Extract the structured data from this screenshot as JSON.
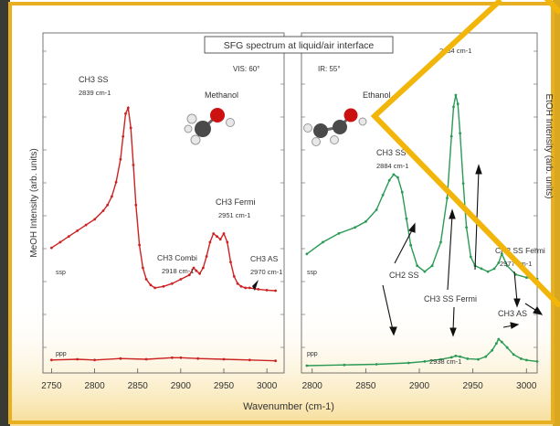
{
  "chart_data": [
    {
      "type": "line",
      "title": "SFG spectrum at liquid/air interface",
      "subtitle_vis": "VIS: 60°",
      "subtitle_ir": "IR: 55°",
      "panel_label": "Methanol",
      "panel_color": "#cc2222",
      "ylabel": "MeOH Intensity (arb. units)",
      "xlabel": "Wavenumber (cm-1)",
      "xlim": [
        2740,
        3020
      ],
      "xticks": [
        "2750",
        "2800",
        "2850",
        "2900",
        "2950",
        "3000"
      ],
      "series": [
        {
          "name": "ssp",
          "x": [
            2750,
            2760,
            2770,
            2780,
            2790,
            2800,
            2810,
            2815,
            2820,
            2825,
            2830,
            2833,
            2836,
            2839,
            2842,
            2845,
            2848,
            2852,
            2856,
            2860,
            2865,
            2870,
            2880,
            2890,
            2900,
            2910,
            2915,
            2918,
            2922,
            2926,
            2930,
            2934,
            2938,
            2942,
            2946,
            2950,
            2954,
            2958,
            2962,
            2966,
            2970,
            2975,
            2980,
            2990,
            3000,
            3010
          ],
          "y": [
            0.51,
            0.53,
            0.55,
            0.57,
            0.59,
            0.61,
            0.64,
            0.66,
            0.69,
            0.74,
            0.82,
            0.9,
            0.98,
            1.0,
            0.93,
            0.8,
            0.66,
            0.52,
            0.44,
            0.4,
            0.38,
            0.37,
            0.375,
            0.385,
            0.4,
            0.415,
            0.44,
            0.43,
            0.42,
            0.44,
            0.48,
            0.53,
            0.56,
            0.55,
            0.54,
            0.56,
            0.53,
            0.46,
            0.41,
            0.385,
            0.375,
            0.37,
            0.37,
            0.365,
            0.362,
            0.36
          ]
        },
        {
          "name": "ppp",
          "x": [
            2750,
            2780,
            2800,
            2830,
            2860,
            2890,
            2900,
            2920,
            2950,
            2980,
            3010
          ],
          "y": [
            0.165,
            0.17,
            0.165,
            0.175,
            0.17,
            0.18,
            0.18,
            0.175,
            0.17,
            0.165,
            0.16
          ]
        }
      ],
      "annotations": [
        {
          "text": "CH3 SS",
          "sub": "2839 cm-1"
        },
        {
          "text": "CH3 Combi",
          "sub": "2918 cm-1"
        },
        {
          "text": "CH3 Fermi",
          "sub": "2951 cm-1"
        },
        {
          "text": "CH3 AS",
          "sub": "2970 cm-1"
        }
      ]
    },
    {
      "type": "line",
      "panel_label": "Ethanol",
      "panel_color": "#2a9a55",
      "ylabel": "EtOH Intensity (arb. units)",
      "xlim": [
        2790,
        3010
      ],
      "xticks": [
        "2800",
        "2850",
        "2900",
        "2950",
        "3000"
      ],
      "series": [
        {
          "name": "ssp",
          "x": [
            2795,
            2810,
            2825,
            2840,
            2850,
            2860,
            2866,
            2872,
            2876,
            2880,
            2884,
            2888,
            2892,
            2898,
            2905,
            2912,
            2920,
            2926,
            2930,
            2932,
            2934,
            2936,
            2938,
            2941,
            2944,
            2948,
            2952,
            2958,
            2964,
            2970,
            2974,
            2977,
            2982,
            2990,
            3000,
            3010
          ],
          "y": [
            0.46,
            0.5,
            0.53,
            0.55,
            0.57,
            0.61,
            0.66,
            0.71,
            0.73,
            0.72,
            0.67,
            0.58,
            0.49,
            0.42,
            0.4,
            0.42,
            0.5,
            0.65,
            0.86,
            0.96,
            1.0,
            0.97,
            0.87,
            0.7,
            0.55,
            0.45,
            0.42,
            0.41,
            0.4,
            0.41,
            0.43,
            0.46,
            0.42,
            0.39,
            0.38,
            0.375
          ]
        },
        {
          "name": "ppp",
          "x": [
            2795,
            2830,
            2860,
            2890,
            2905,
            2920,
            2930,
            2934,
            2938,
            2945,
            2955,
            2962,
            2968,
            2972,
            2974,
            2977,
            2982,
            2988,
            2995,
            3000,
            3010
          ],
          "y": [
            0.14,
            0.145,
            0.15,
            0.16,
            0.17,
            0.185,
            0.2,
            0.21,
            0.205,
            0.19,
            0.185,
            0.205,
            0.25,
            0.3,
            0.33,
            0.31,
            0.27,
            0.22,
            0.19,
            0.18,
            0.17
          ]
        }
      ],
      "annotations": [
        {
          "text": "CH3 SS",
          "sub": "2884 cm-1"
        },
        {
          "text": "CH2 SS",
          "sub": ""
        },
        {
          "text": "CH3 SS Fermi",
          "sub": "2938 cm-1"
        },
        {
          "text": "CH2 SS Fermi",
          "sub": "2977 cm-1"
        },
        {
          "text": "CH3 AS",
          "sub": ""
        },
        {
          "text": "",
          "sub": "2934 cm-1"
        }
      ]
    }
  ]
}
